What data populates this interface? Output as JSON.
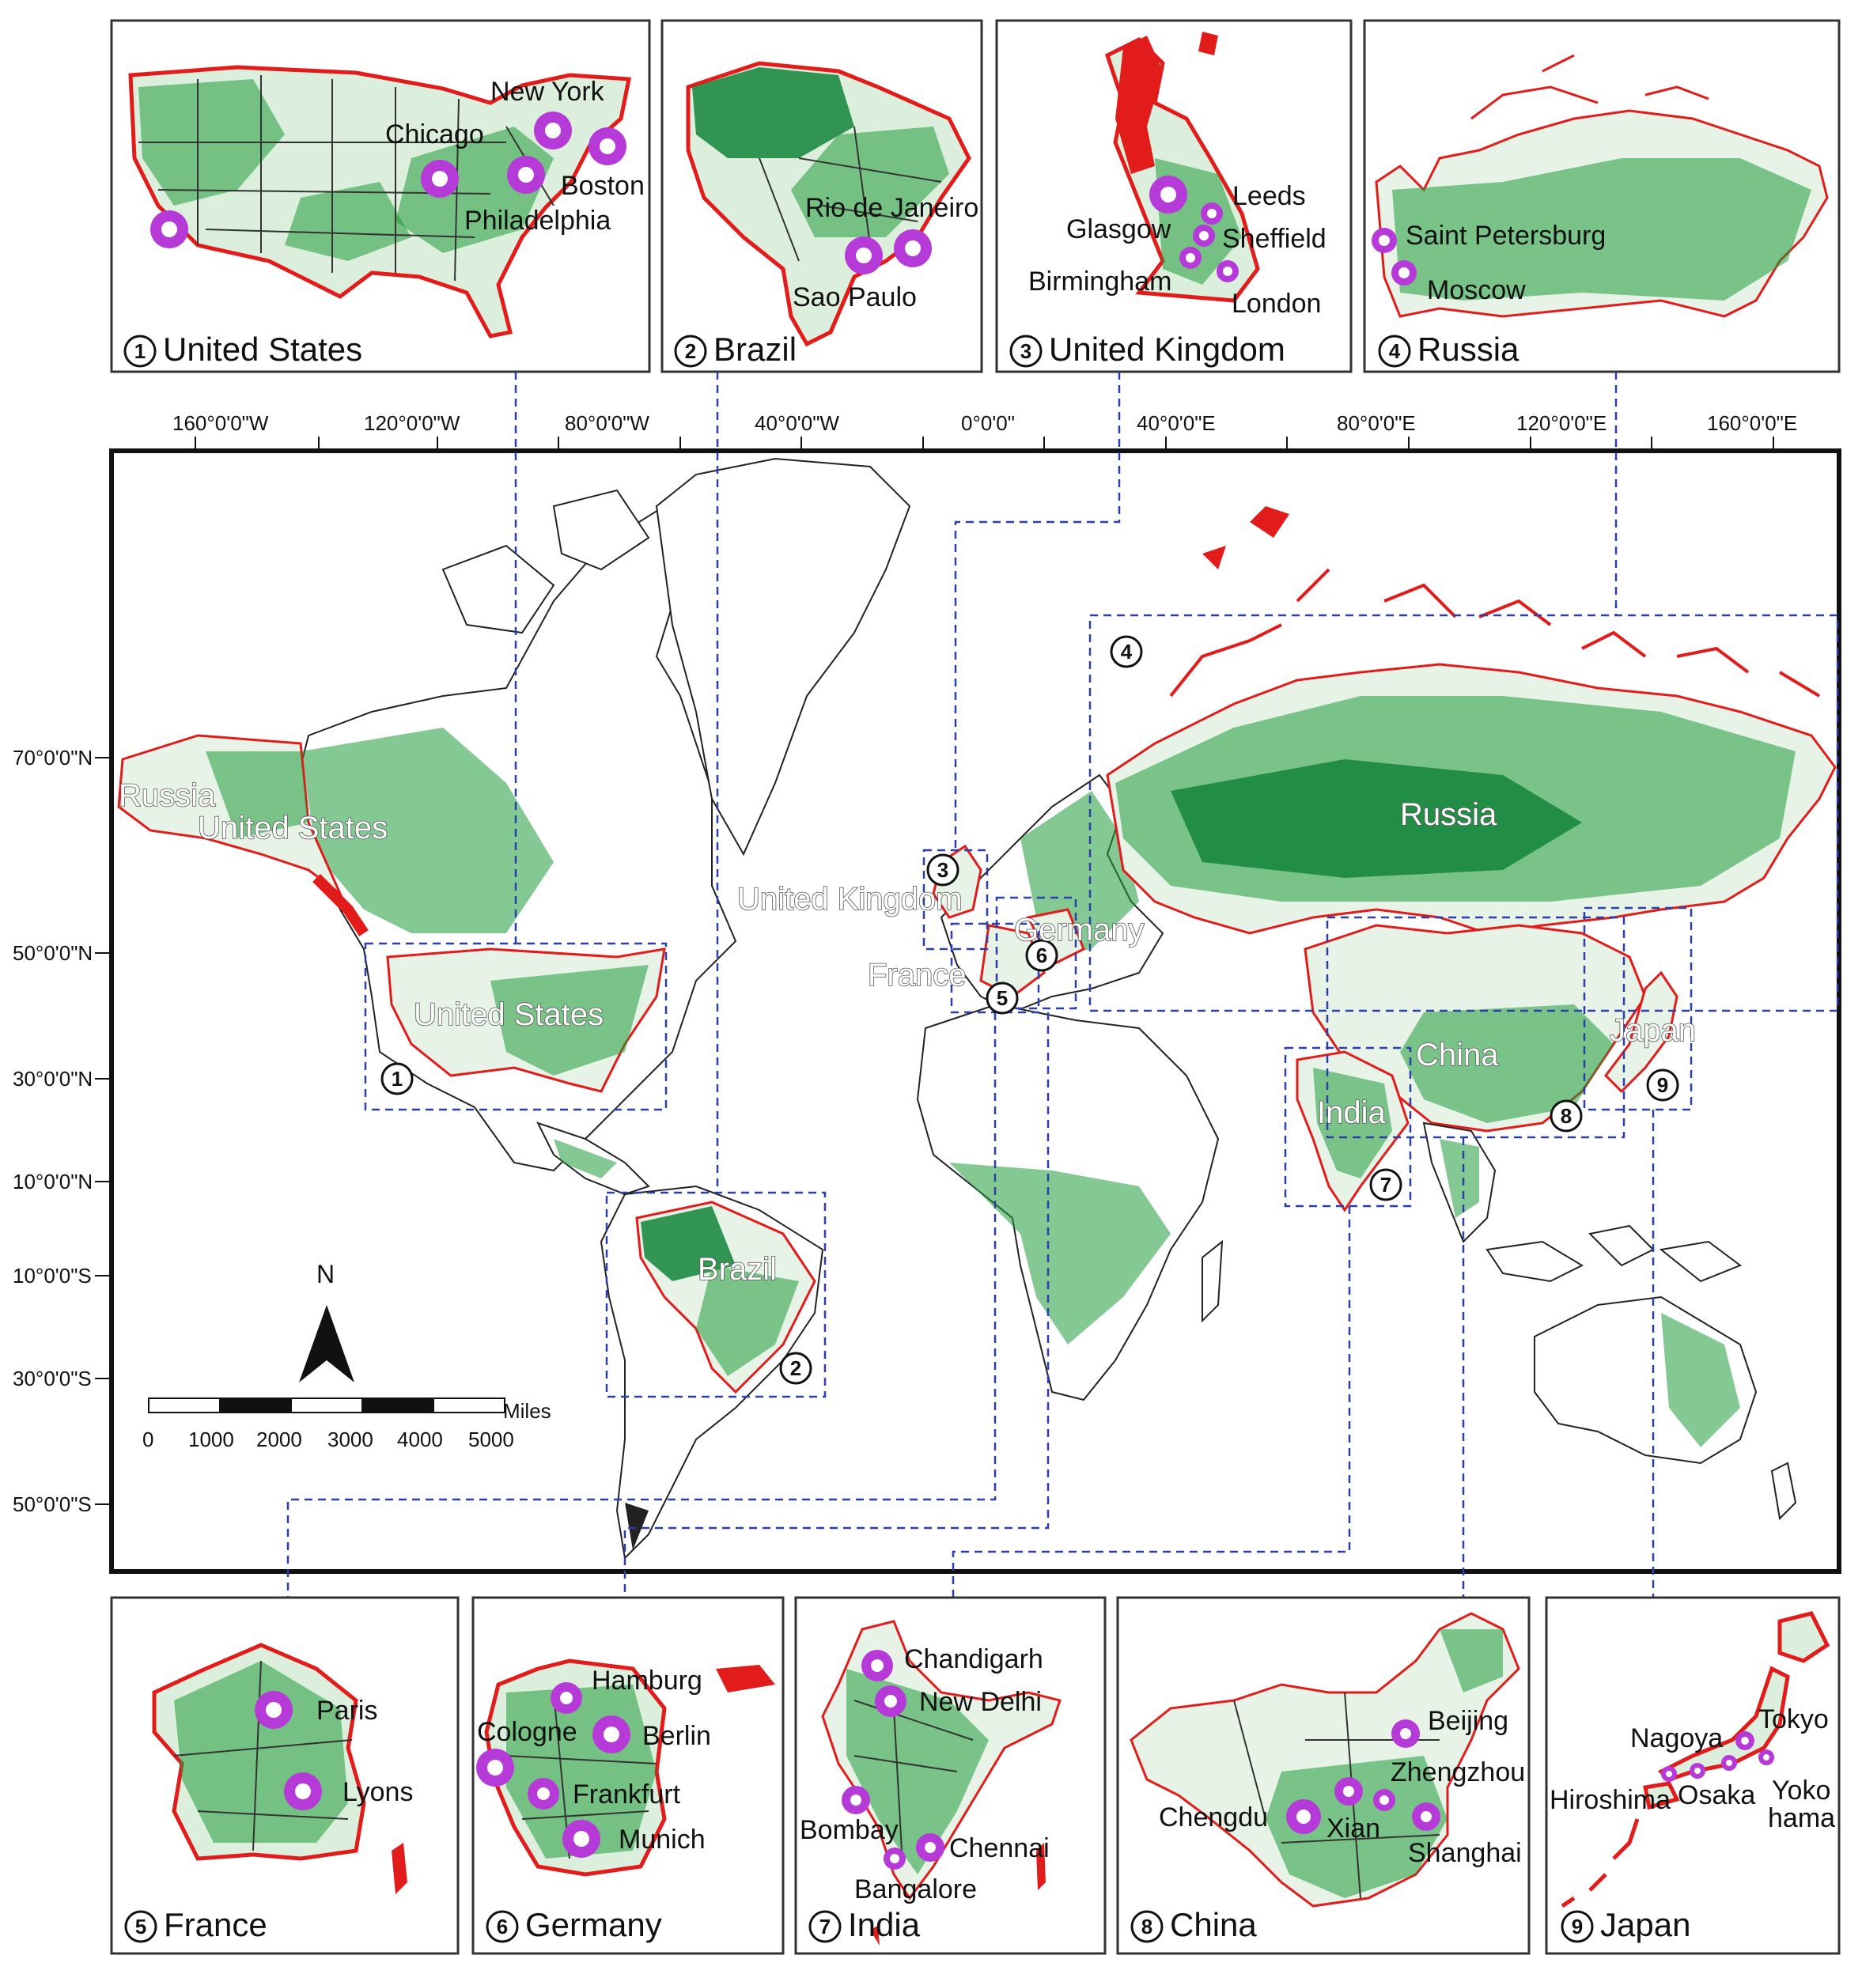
{
  "panels": [
    {
      "num": "1",
      "title": "United States",
      "cities": [
        "New York",
        "Chicago",
        "Boston",
        "Philadelphia"
      ]
    },
    {
      "num": "2",
      "title": "Brazil",
      "cities": [
        "Rio de Janeiro",
        "Sao Paulo"
      ]
    },
    {
      "num": "3",
      "title": "United Kingdom",
      "cities": [
        "Leeds",
        "Glasgow",
        "Sheffield",
        "Birmingham",
        "London"
      ]
    },
    {
      "num": "4",
      "title": "Russia",
      "cities": [
        "Saint Petersburg",
        "Moscow"
      ]
    },
    {
      "num": "5",
      "title": "France",
      "cities": [
        "Paris",
        "Lyons"
      ]
    },
    {
      "num": "6",
      "title": "Germany",
      "cities": [
        "Hamburg",
        "Cologne",
        "Berlin",
        "Frankfurt",
        "Munich"
      ]
    },
    {
      "num": "7",
      "title": "India",
      "cities": [
        "Chandigarh",
        "New Delhi",
        "Bombay",
        "Chennai",
        "Bangalore"
      ]
    },
    {
      "num": "8",
      "title": "China",
      "cities": [
        "Beijing",
        "Zhengzhou",
        "Chengdu",
        "Xian",
        "Shanghai"
      ]
    },
    {
      "num": "9",
      "title": "Japan",
      "cities": [
        "Tokyo",
        "Nagoya",
        "Hiroshima",
        "Osaka",
        "Yoko",
        "hama"
      ]
    }
  ],
  "world": {
    "longitude_ticks": [
      "160°0'0\"W",
      "120°0'0\"W",
      "80°0'0\"W",
      "40°0'0\"W",
      "0°0'0\"",
      "40°0'0\"E",
      "80°0'0\"E",
      "120°0'0\"E",
      "160°0'0\"E"
    ],
    "latitude_ticks": [
      "70°0'0\"N",
      "50°0'0\"N",
      "30°0'0\"N",
      "10°0'0\"N",
      "10°0'0\"S",
      "30°0'0\"S",
      "50°0'0\"S"
    ],
    "labels": [
      "Russia",
      "United States",
      "United States",
      "United Kingdom",
      "Germany",
      "France",
      "Russia",
      "China",
      "India",
      "Japan",
      "Brazil"
    ],
    "markers": [
      "1",
      "2",
      "3",
      "4",
      "5",
      "6",
      "7",
      "8",
      "9"
    ],
    "north": "N",
    "scale_unit": "Miles",
    "scale_values": [
      "0",
      "1000",
      "2000",
      "3000",
      "4000",
      "5000"
    ]
  },
  "colors": {
    "vegetation": "#1f9a3a",
    "boundary": "#e21b1b",
    "city_marker": "#b53ad8",
    "inset_link": "#2a3fa8"
  }
}
